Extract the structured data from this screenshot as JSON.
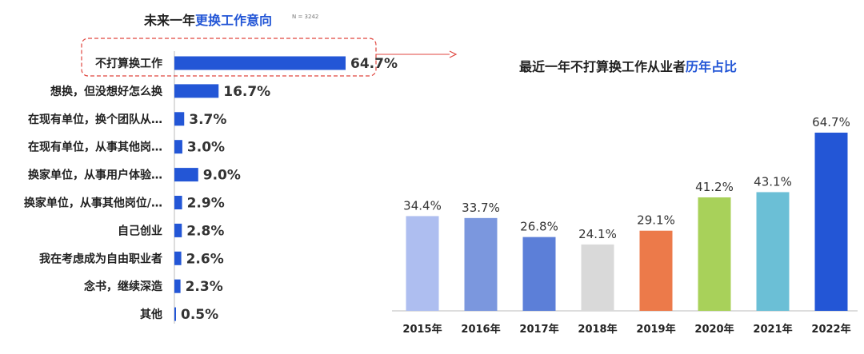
{
  "chart_data": [
    {
      "type": "bar",
      "orientation": "horizontal",
      "title_prefix": "未来一年",
      "title_accent": "更换工作意向",
      "note": "N = 3242",
      "categories": [
        "不打算换工作",
        "想换，但没想好怎么换",
        "在现有单位，换个团队从…",
        "在现有单位，从事其他岗…",
        "换家单位，从事用户体验…",
        "换家单位，从事其他岗位/…",
        "自己创业",
        "我在考虑成为自由职业者",
        "念书，继续深造",
        "其他"
      ],
      "values": [
        64.7,
        16.7,
        3.7,
        3.0,
        9.0,
        2.9,
        2.8,
        2.6,
        2.3,
        0.5
      ],
      "value_labels": [
        "64.7%",
        "16.7%",
        "3.7%",
        "3.0%",
        "9.0%",
        "2.9%",
        "2.8%",
        "2.6%",
        "2.3%",
        "0.5%"
      ],
      "bar_color": "#2356d6",
      "highlight_color": "#e0463f"
    },
    {
      "type": "bar",
      "orientation": "vertical",
      "title_prefix": "最近一年不打算换工作从业者",
      "title_accent": "历年占比",
      "categories": [
        "2015年",
        "2016年",
        "2017年",
        "2018年",
        "2019年",
        "2020年",
        "2021年",
        "2022年"
      ],
      "values": [
        34.4,
        33.7,
        26.8,
        24.1,
        29.1,
        41.2,
        43.1,
        64.7
      ],
      "value_labels": [
        "34.4%",
        "33.7%",
        "26.8%",
        "24.1%",
        "29.1%",
        "41.2%",
        "43.1%",
        "64.7%"
      ],
      "colors": [
        "#aebef0",
        "#7b97de",
        "#5c7fd8",
        "#d9d9d9",
        "#ec7a4a",
        "#a8d15a",
        "#6bbfd6",
        "#2356d6"
      ],
      "ylim": [
        0,
        70
      ]
    }
  ]
}
